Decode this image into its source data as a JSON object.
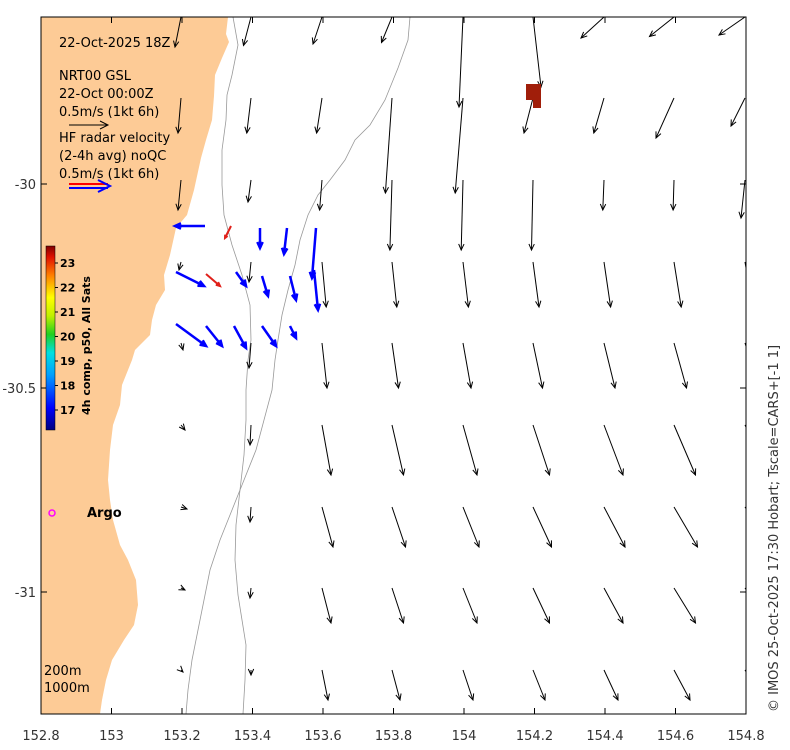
{
  "header": {
    "date_label": "22-Oct-2025 18Z",
    "model_label": "NRT00 GSL",
    "model_time": "22-Oct 00:00Z",
    "model_scale": "0.5m/s (1kt 6h)",
    "radar_line1": "HF radar velocity",
    "radar_line2": "(2-4h avg) noQC",
    "radar_scale": "0.5m/s (1kt 6h)"
  },
  "colorbar": {
    "title": "4h comp, p50, All Sats",
    "ticks": [
      "23",
      "22",
      "21",
      "20",
      "19",
      "18",
      "17"
    ]
  },
  "argo_label": "Argo",
  "depth_labels": [
    "200m",
    "1000m"
  ],
  "credit": "© IMOS 25-Oct-2025 17:30 Hobart; Tscale=CARS+[-1 1]",
  "axes": {
    "x_ticks": [
      "152.8",
      "153",
      "153.2",
      "153.4",
      "153.6",
      "153.8",
      "154",
      "154.2",
      "154.4",
      "154.6",
      "154.8"
    ],
    "y_ticks": [
      "-30",
      "-30.5",
      "-31"
    ]
  },
  "colors": {
    "land": "#fdcb96",
    "model_arrow": "#000000",
    "radar_arrow": "#0000ff",
    "warm_arrow": "#e0201a",
    "argo": "#ff00ff",
    "hot_patch": "#a01e0a"
  }
}
